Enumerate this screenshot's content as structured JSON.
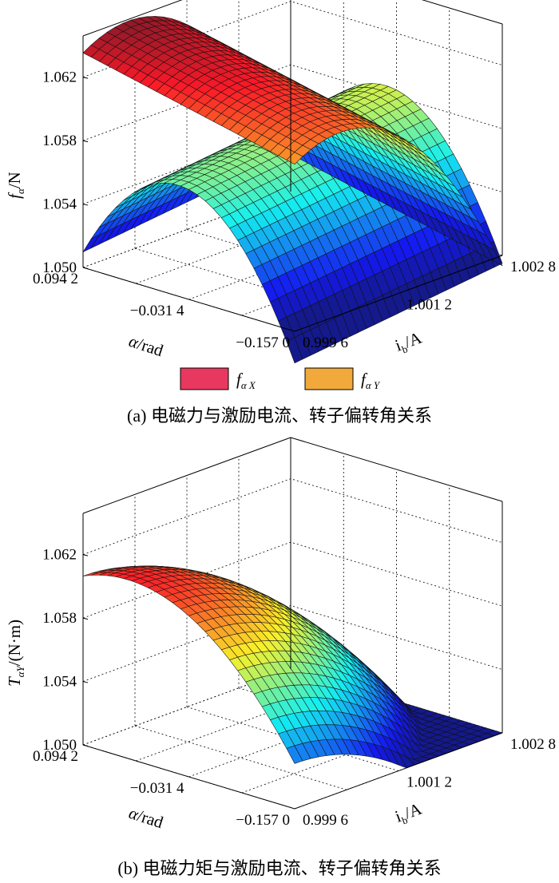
{
  "charts": [
    {
      "caption": "(a) 电磁力与激励电流、转子偏转角关系",
      "zlabel": {
        "main": "f",
        "sub": "α",
        "unit": "/N"
      },
      "xlabel": {
        "main": "α",
        "unit": "/rad"
      },
      "ylabel": {
        "main": "i",
        "sub": "b",
        "unit": "/A"
      },
      "legend": [
        {
          "main": "f",
          "sub": "α X"
        },
        {
          "main": "f",
          "sub": "α Y"
        }
      ]
    },
    {
      "caption": "(b) 电磁力矩与激励电流、转子偏转角关系",
      "zlabel": {
        "main": "T",
        "sub": "αY",
        "unit": "/(N·m)"
      },
      "xlabel": {
        "main": "α",
        "unit": "/rad"
      },
      "ylabel": {
        "main": "i",
        "sub": "b",
        "unit": "/A"
      },
      "legend": []
    }
  ],
  "chart_data": [
    {
      "type": "surface3d",
      "x_axis": {
        "label": "α/rad",
        "ticks": [
          0.0942,
          -0.0314,
          -0.157
        ],
        "tick_labels": [
          "0.094 2",
          "−0.031 4",
          "−0.157 0"
        ],
        "range": [
          -0.157,
          0.0942
        ]
      },
      "y_axis": {
        "label": "ib/A",
        "ticks": [
          0.9996,
          1.0012,
          1.0028
        ],
        "tick_labels": [
          "0.999 6",
          "1.001 2",
          "1.002 8"
        ],
        "range": [
          0.9996,
          1.0028
        ]
      },
      "z_axis": {
        "label": "fα/N",
        "ticks": [
          1.05,
          1.054,
          1.058,
          1.062
        ],
        "tick_labels": [
          "1.050",
          "1.054",
          "1.058",
          "1.062"
        ],
        "range": [
          1.05,
          1.0646
        ]
      },
      "grid": true,
      "colormap": "jet",
      "series": [
        {
          "name": "fαX",
          "legend_color": "#e8385f",
          "z_grid_description": "ridge along ib≈1.0002, peak ≈1.0645 at α=0.0942, falling to ≈1.0615 at α=-0.157"
        },
        {
          "name": "fαY",
          "legend_color": "#f2a93b",
          "z_grid_description": "ridge along α≈-0.01, peak ≈1.0585 at ib=1.0028, ≈1.0570 at ib=0.9996, edges ≈1.050–1.051"
        }
      ]
    },
    {
      "type": "surface3d",
      "x_axis": {
        "label": "α/rad",
        "ticks": [
          0.0942,
          -0.0314,
          -0.157
        ],
        "tick_labels": [
          "0.094 2",
          "−0.031 4",
          "−0.157 0"
        ],
        "range": [
          -0.157,
          0.0942
        ]
      },
      "y_axis": {
        "label": "ib/A",
        "ticks": [
          0.9996,
          1.0012,
          1.0028
        ],
        "tick_labels": [
          "0.999 6",
          "1.001 2",
          "1.002 8"
        ],
        "range": [
          0.9996,
          1.0028
        ]
      },
      "z_axis": {
        "label": "TαY/(N·m)",
        "ticks": [
          1.05,
          1.054,
          1.058,
          1.062
        ],
        "tick_labels": [
          "1.050",
          "1.054",
          "1.058",
          "1.062"
        ],
        "range": [
          1.05,
          1.0646
        ]
      },
      "grid": true,
      "colormap": "jet",
      "series": [
        {
          "name": "TαY",
          "z_grid_description": "saddle-like ridge: peak ≈1.0615 near α=0.03, ib=0.9996; ≈1.0505 at α=-0.157, ib=0.9996; ≈1.051 at α=0.0942, ib=1.0028"
        }
      ]
    }
  ]
}
